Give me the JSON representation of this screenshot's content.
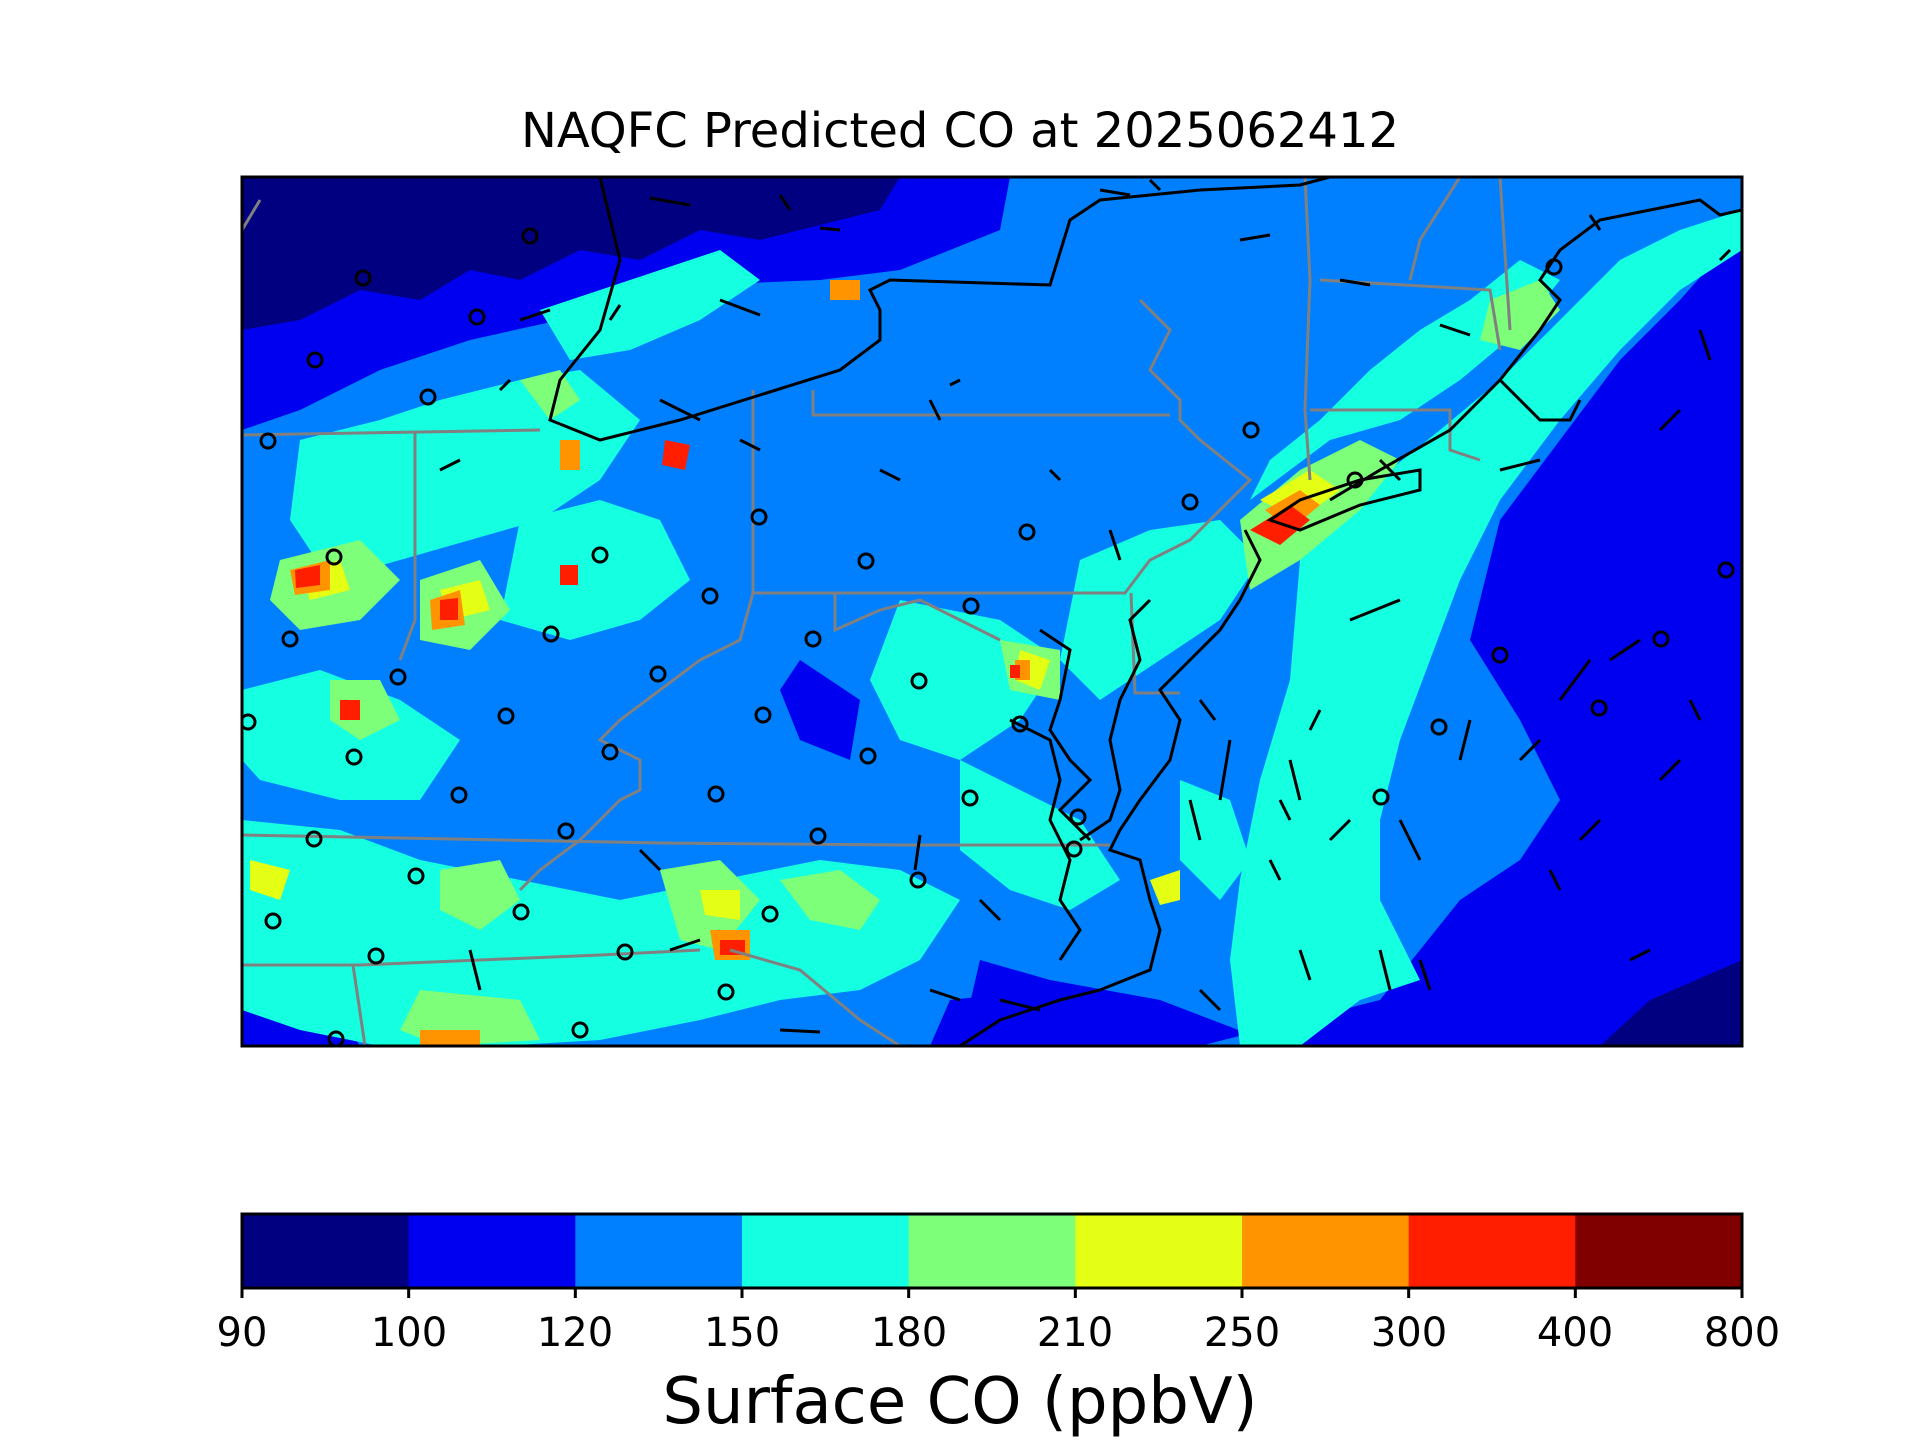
{
  "title": "NAQFC Predicted CO at 2025062412",
  "colorbar": {
    "label": "Surface CO (ppbV)",
    "ticks": [
      "90",
      "100",
      "120",
      "150",
      "180",
      "210",
      "250",
      "300",
      "400",
      "800"
    ],
    "colors": [
      "#000080",
      "#0000f1",
      "#0080ff",
      "#15ffe1",
      "#7dff7a",
      "#e4ff13",
      "#ff9400",
      "#ff1e00",
      "#800000"
    ]
  },
  "chart_data": {
    "type": "heatmap",
    "title": "NAQFC Predicted CO at 2025062412",
    "colorbar_label": "Surface CO (ppbV)",
    "levels": [
      90,
      100,
      120,
      150,
      180,
      210,
      250,
      300,
      400,
      800
    ],
    "field_description": "Filled contour of surface CO over the Mid-Atlantic / Northeast US; background mostly 120-150 ppbV, lower values (<100) over Ontario/Quebec in the north and the Atlantic to the southeast, plumes of 150-300 ppbV along urban corridors (NYC-Long Island, Baltimore-Washington, Ohio valley, North Carolina Piedmont).",
    "overlays": [
      "state and national boundaries",
      "coastlines",
      "wind barbs",
      "observation station circles"
    ],
    "legend_placement": "bottom colorbar"
  }
}
